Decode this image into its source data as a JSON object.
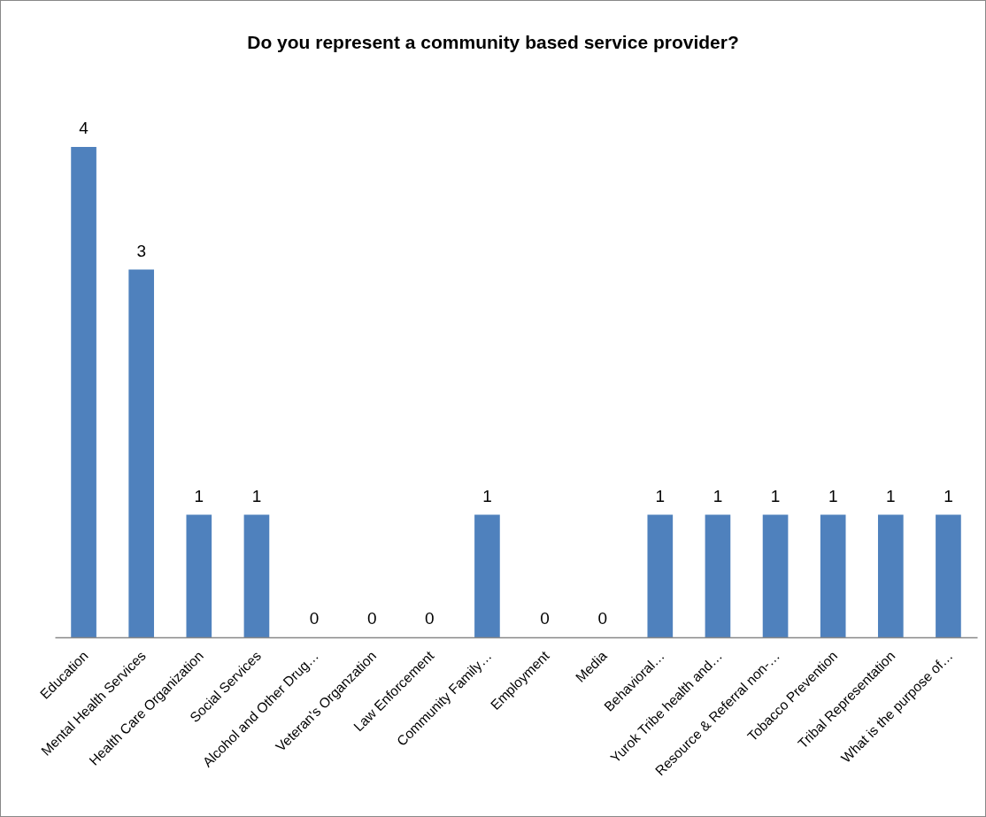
{
  "chart_data": {
    "type": "bar",
    "title": "Do you represent a community based service provider?",
    "categories": [
      "Education",
      "Mental Health Services",
      "Health Care Organization",
      "Social Services",
      "Alcohol and Other Drug…",
      "Veteran's Organzation",
      "Law Enforcement",
      "Community Family…",
      "Employment",
      "Media",
      "Behavioral…",
      "Yurok Tribe health and…",
      "Resource & Referral non-…",
      "Tobacco Prevention",
      "Tribal Representation",
      "What is the purpose of…"
    ],
    "values": [
      4,
      3,
      1,
      1,
      0,
      0,
      0,
      1,
      0,
      0,
      1,
      1,
      1,
      1,
      1,
      1
    ],
    "color": "#4f81bd",
    "ylim": [
      0,
      4
    ],
    "data_labels": true
  }
}
